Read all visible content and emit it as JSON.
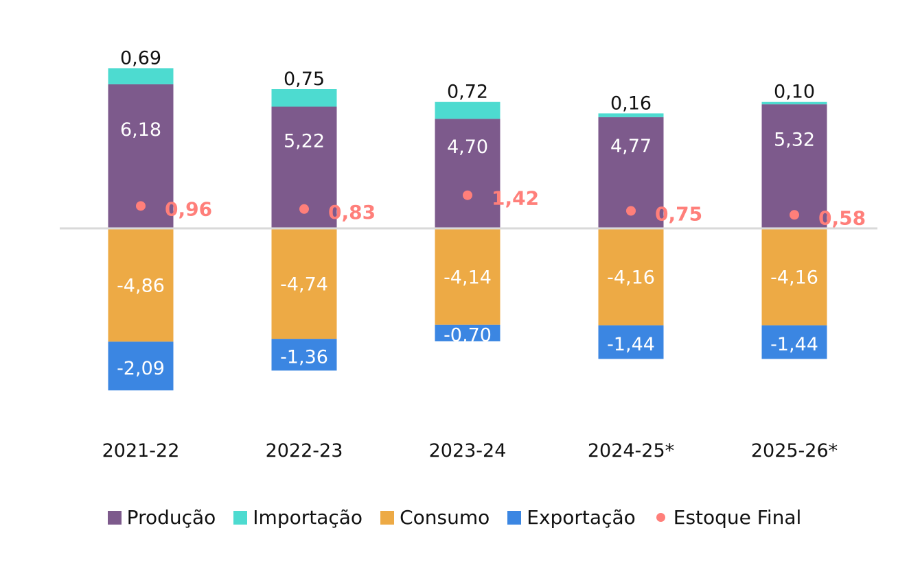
{
  "chart_data": {
    "type": "bar",
    "stacked": true,
    "title": "",
    "xlabel": "",
    "ylabel": "",
    "categories": [
      "2021-22",
      "2022-23",
      "2023-24",
      "2024-25*",
      "2025-26*"
    ],
    "series": [
      {
        "name": "Produção",
        "color": "#7D5A8C",
        "values": [
          6.18,
          5.22,
          4.7,
          4.77,
          5.32
        ],
        "labels": [
          "6,18",
          "5,22",
          "4,70",
          "4,77",
          "5,32"
        ]
      },
      {
        "name": "Importação",
        "color": "#4DDBD0",
        "values": [
          0.69,
          0.75,
          0.72,
          0.16,
          0.1
        ],
        "labels": [
          "0,69",
          "0,75",
          "0,72",
          "0,16",
          "0,10"
        ]
      },
      {
        "name": "Consumo",
        "color": "#EDAA45",
        "values": [
          -4.86,
          -4.74,
          -4.14,
          -4.16,
          -4.16
        ],
        "labels": [
          "-4,86",
          "-4,74",
          "-4,14",
          "-4,16",
          "-4,16"
        ]
      },
      {
        "name": "Exportação",
        "color": "#3B86E2",
        "values": [
          -2.09,
          -1.36,
          -0.7,
          -1.44,
          -1.44
        ],
        "labels": [
          "-2,09",
          "-1,36",
          "-0,70",
          "-1,44",
          "-1,44"
        ]
      },
      {
        "name": "Estoque Final",
        "type": "scatter",
        "color": "#FF7F7A",
        "values": [
          0.96,
          0.83,
          1.42,
          0.75,
          0.58
        ],
        "labels": [
          "0,96",
          "0,83",
          "1,42",
          "0,75",
          "0,58"
        ]
      }
    ],
    "ylim": [
      -7.5,
      7.5
    ],
    "grid": false,
    "zero_line": true,
    "legend": {
      "position": "bottom"
    }
  }
}
